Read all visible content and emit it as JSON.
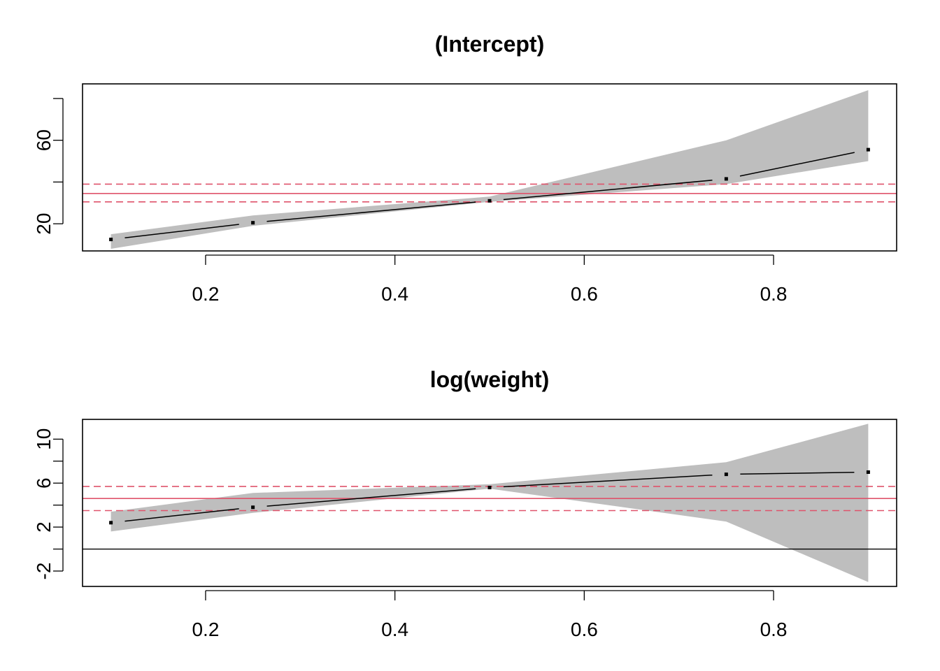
{
  "colors": {
    "band": "#bebebe",
    "estimate_line": "#000000",
    "ols_line": "#df536b",
    "zero_line": "#000000",
    "frame": "#000000"
  },
  "chart_data": [
    {
      "type": "line",
      "title": "(Intercept)",
      "xlabel": "",
      "ylabel": "",
      "x": [
        0.1,
        0.25,
        0.5,
        0.75,
        0.9
      ],
      "series": [
        {
          "values": [
            12.5,
            20.5,
            31.0,
            41.5,
            55.5
          ]
        }
      ],
      "band": {
        "lower": [
          8.0,
          19.0,
          30.5,
          39.0,
          50.0
        ],
        "upper": [
          15.0,
          24.0,
          33.0,
          60.0,
          84.0
        ]
      },
      "reference_lines": {
        "estimate": 34.5,
        "lower": 30.5,
        "upper": 39.0
      },
      "zero_line": false,
      "xlim": [
        0.07,
        0.93
      ],
      "ylim": [
        7,
        87
      ],
      "xticks": [
        0.2,
        0.4,
        0.6,
        0.8
      ],
      "xtick_labels": [
        "0.2",
        "0.4",
        "0.6",
        "0.8"
      ],
      "yticks": [
        20,
        40,
        60,
        80
      ],
      "ytick_labels": [
        "20",
        "",
        "60",
        ""
      ],
      "grid": false
    },
    {
      "type": "line",
      "title": "log(weight)",
      "xlabel": "",
      "ylabel": "",
      "x": [
        0.1,
        0.25,
        0.5,
        0.75,
        0.9
      ],
      "series": [
        {
          "values": [
            2.4,
            3.8,
            5.6,
            6.8,
            7.0
          ]
        }
      ],
      "band": {
        "lower": [
          1.6,
          3.3,
          5.5,
          2.5,
          -3.0
        ],
        "upper": [
          3.4,
          5.1,
          5.9,
          7.9,
          11.4
        ]
      },
      "reference_lines": {
        "estimate": 4.6,
        "lower": 3.5,
        "upper": 5.7
      },
      "zero_line": true,
      "xlim": [
        0.07,
        0.93
      ],
      "ylim": [
        -3.4,
        11.8
      ],
      "xticks": [
        0.2,
        0.4,
        0.6,
        0.8
      ],
      "xtick_labels": [
        "0.2",
        "0.4",
        "0.6",
        "0.8"
      ],
      "yticks": [
        -2,
        0,
        2,
        4,
        6,
        8,
        10
      ],
      "ytick_labels": [
        "-2",
        "",
        "2",
        "",
        "6",
        "",
        "10"
      ],
      "grid": false
    }
  ]
}
